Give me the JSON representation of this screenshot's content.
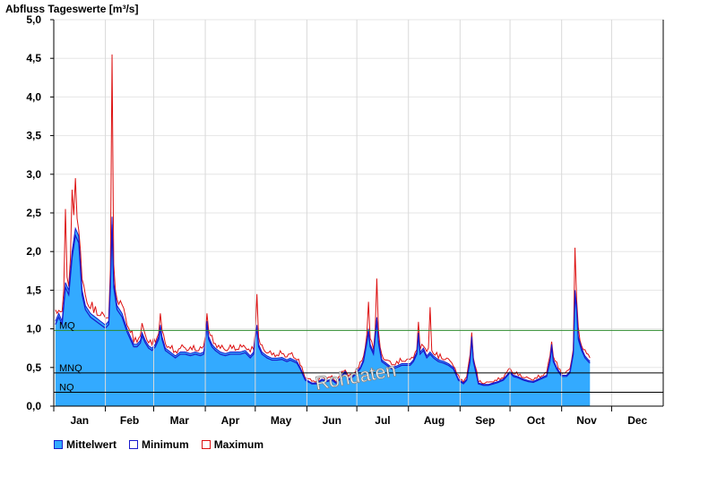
{
  "chart_data": {
    "type": "area",
    "title": "Abfluss Tageswerte [m³/s]",
    "ylim": [
      0,
      5
    ],
    "yticks": [
      "0,0",
      "0,5",
      "1,0",
      "1,5",
      "2,0",
      "2,5",
      "3,0",
      "3,5",
      "4,0",
      "4,5",
      "5,0"
    ],
    "months": [
      "Jan",
      "Feb",
      "Mar",
      "Apr",
      "May",
      "Jun",
      "Jul",
      "Aug",
      "Sep",
      "Oct",
      "Nov",
      "Dec"
    ],
    "watermark": "Rohdaten",
    "reference_lines": [
      {
        "label": "MQ",
        "value": 0.98,
        "color": "#2e8b2e"
      },
      {
        "label": "MNQ",
        "value": 0.43,
        "color": "#000000"
      },
      {
        "label": "NQ",
        "value": 0.18,
        "color": "#000000"
      }
    ],
    "colors": {
      "mean": "#33aaff",
      "minimum": "#1a1acc",
      "maximum": "#dd1111"
    },
    "legend": [
      {
        "label": "Mittelwert",
        "key": "mean"
      },
      {
        "label": "Minimum",
        "key": "minimum"
      },
      {
        "label": "Maximum",
        "key": "maximum"
      }
    ],
    "series_mean_keypoints": [
      [
        1,
        1.1
      ],
      [
        3,
        1.2
      ],
      [
        5,
        1.1
      ],
      [
        7,
        1.6
      ],
      [
        9,
        1.5
      ],
      [
        11,
        2.0
      ],
      [
        13,
        2.3
      ],
      [
        15,
        2.2
      ],
      [
        17,
        1.5
      ],
      [
        19,
        1.3
      ],
      [
        22,
        1.2
      ],
      [
        25,
        1.15
      ],
      [
        28,
        1.1
      ],
      [
        31,
        1.05
      ],
      [
        33,
        1.1
      ],
      [
        34,
        1.6
      ],
      [
        35,
        2.45
      ],
      [
        36,
        1.6
      ],
      [
        38,
        1.3
      ],
      [
        41,
        1.2
      ],
      [
        44,
        1.0
      ],
      [
        46,
        0.9
      ],
      [
        48,
        0.8
      ],
      [
        50,
        0.8
      ],
      [
        52,
        0.85
      ],
      [
        53,
        0.95
      ],
      [
        55,
        0.85
      ],
      [
        57,
        0.78
      ],
      [
        59,
        0.75
      ],
      [
        61,
        0.8
      ],
      [
        63,
        0.9
      ],
      [
        64,
        1.05
      ],
      [
        65,
        0.9
      ],
      [
        67,
        0.75
      ],
      [
        70,
        0.7
      ],
      [
        73,
        0.65
      ],
      [
        76,
        0.7
      ],
      [
        79,
        0.7
      ],
      [
        82,
        0.68
      ],
      [
        85,
        0.7
      ],
      [
        88,
        0.68
      ],
      [
        90,
        0.7
      ],
      [
        91,
        0.85
      ],
      [
        92,
        1.1
      ],
      [
        93,
        0.9
      ],
      [
        95,
        0.8
      ],
      [
        97,
        0.75
      ],
      [
        100,
        0.7
      ],
      [
        103,
        0.68
      ],
      [
        106,
        0.7
      ],
      [
        109,
        0.7
      ],
      [
        112,
        0.7
      ],
      [
        115,
        0.72
      ],
      [
        118,
        0.65
      ],
      [
        120,
        0.7
      ],
      [
        121,
        0.9
      ],
      [
        122,
        1.05
      ],
      [
        123,
        0.8
      ],
      [
        125,
        0.7
      ],
      [
        128,
        0.65
      ],
      [
        131,
        0.62
      ],
      [
        134,
        0.62
      ],
      [
        137,
        0.63
      ],
      [
        140,
        0.6
      ],
      [
        142,
        0.62
      ],
      [
        144,
        0.6
      ],
      [
        146,
        0.58
      ],
      [
        148,
        0.5
      ],
      [
        151,
        0.35
      ],
      [
        155,
        0.3
      ],
      [
        158,
        0.3
      ],
      [
        161,
        0.35
      ],
      [
        164,
        0.33
      ],
      [
        167,
        0.35
      ],
      [
        170,
        0.3
      ],
      [
        173,
        0.4
      ],
      [
        175,
        0.45
      ],
      [
        177,
        0.35
      ],
      [
        180,
        0.4
      ],
      [
        182,
        0.45
      ],
      [
        184,
        0.5
      ],
      [
        186,
        0.6
      ],
      [
        188,
        0.85
      ],
      [
        189,
        1.0
      ],
      [
        190,
        0.8
      ],
      [
        192,
        0.7
      ],
      [
        194,
        1.15
      ],
      [
        195,
        0.85
      ],
      [
        197,
        0.6
      ],
      [
        200,
        0.55
      ],
      [
        203,
        0.5
      ],
      [
        206,
        0.52
      ],
      [
        209,
        0.55
      ],
      [
        212,
        0.55
      ],
      [
        214,
        0.55
      ],
      [
        216,
        0.6
      ],
      [
        218,
        0.7
      ],
      [
        219,
        0.95
      ],
      [
        220,
        0.7
      ],
      [
        222,
        0.75
      ],
      [
        224,
        0.65
      ],
      [
        226,
        0.7
      ],
      [
        228,
        0.65
      ],
      [
        231,
        0.6
      ],
      [
        234,
        0.58
      ],
      [
        237,
        0.55
      ],
      [
        240,
        0.5
      ],
      [
        243,
        0.35
      ],
      [
        246,
        0.3
      ],
      [
        248,
        0.35
      ],
      [
        250,
        0.6
      ],
      [
        251,
        0.9
      ],
      [
        252,
        0.6
      ],
      [
        255,
        0.3
      ],
      [
        258,
        0.28
      ],
      [
        261,
        0.28
      ],
      [
        264,
        0.3
      ],
      [
        267,
        0.32
      ],
      [
        270,
        0.35
      ],
      [
        272,
        0.4
      ],
      [
        274,
        0.45
      ],
      [
        276,
        0.4
      ],
      [
        279,
        0.38
      ],
      [
        282,
        0.35
      ],
      [
        285,
        0.33
      ],
      [
        288,
        0.32
      ],
      [
        291,
        0.35
      ],
      [
        294,
        0.38
      ],
      [
        296,
        0.4
      ],
      [
        298,
        0.6
      ],
      [
        299,
        0.8
      ],
      [
        300,
        0.6
      ],
      [
        302,
        0.5
      ],
      [
        305,
        0.4
      ],
      [
        308,
        0.4
      ],
      [
        310,
        0.45
      ],
      [
        312,
        0.7
      ],
      [
        313,
        1.5
      ],
      [
        314,
        1.3
      ],
      [
        315,
        0.9
      ],
      [
        317,
        0.75
      ],
      [
        319,
        0.65
      ],
      [
        321,
        0.6
      ],
      [
        322,
        0.58
      ]
    ]
  },
  "icons": {
    "legend_swatch": "square-swatch"
  }
}
